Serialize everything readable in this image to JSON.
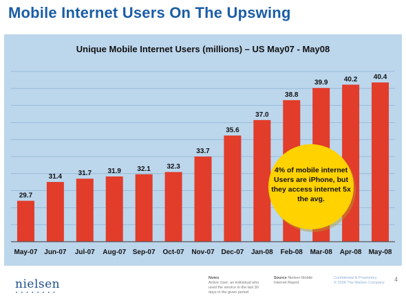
{
  "slide": {
    "title": "Mobile Internet Users On The Upswing",
    "page_number": "4"
  },
  "chart_data": {
    "type": "bar",
    "title": "Unique Mobile Internet Users (millions) – US May07 - May08",
    "categories": [
      "May-07",
      "Jun-07",
      "Jul-07",
      "Aug-07",
      "Sep-07",
      "Oct-07",
      "Nov-07",
      "Dec-07",
      "Jan-08",
      "Feb-08",
      "Mar-08",
      "Apr-08",
      "May-08"
    ],
    "values": [
      29.7,
      31.4,
      31.7,
      31.9,
      32.1,
      32.3,
      33.7,
      35.6,
      37.0,
      38.8,
      39.9,
      40.2,
      40.4
    ],
    "value_labels": [
      "29.7",
      "31.4",
      "31.7",
      "31.9",
      "32.1",
      "32.3",
      "33.7",
      "35.6",
      "37.0",
      "38.8",
      "39.9",
      "40.2",
      "40.4"
    ],
    "ylim": [
      26.0,
      41.4
    ],
    "grid": true,
    "bar_color": "#e23c2b",
    "background_color": "#bcd6ec",
    "annotation": {
      "lines": [
        "4% of mobile internet",
        "Users are iPhone, but",
        "they access internet 5x",
        "the avg."
      ],
      "fill_color": "#ffd200"
    }
  },
  "footer": {
    "logo": "nielsen",
    "notes_title": "Notes",
    "notes_lines": [
      "Active User: an individual who",
      "used the service in the last 30",
      "days in the given period"
    ],
    "source_title": "Source",
    "source_lines": [
      "Nielsen Mobile",
      "Internet Report"
    ],
    "confidential_lines": [
      "Confidential & Proprietary",
      "© 2008 The Nielsen Company"
    ]
  }
}
